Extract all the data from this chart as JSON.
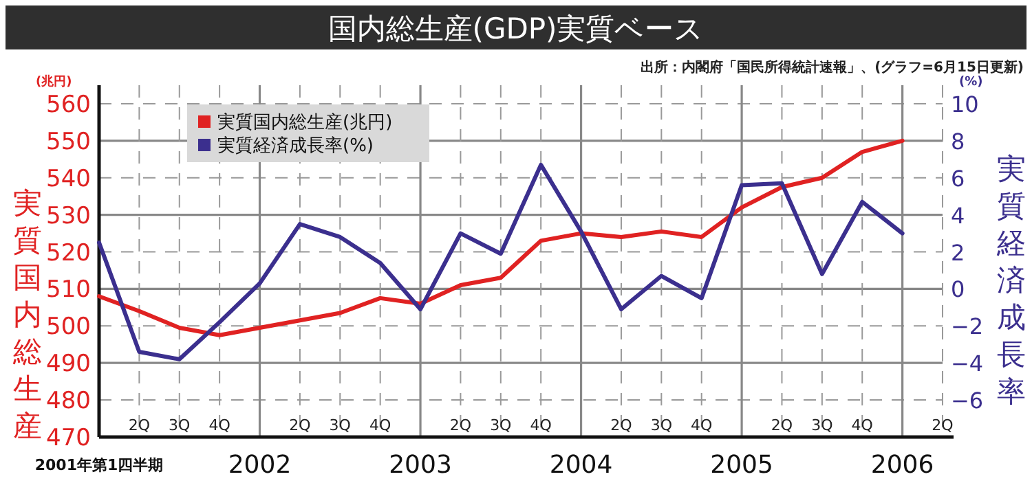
{
  "chart_data": {
    "type": "line",
    "title": "国内総生産(GDP)実質ベース",
    "ylabel": "実質国内総生産",
    "y2label": "実質経済成長率",
    "annotations": [
      "出所：内閣府「国民所得統計速報」、(グラフ=6月15日更新)",
      "(兆円)",
      "(%)"
    ],
    "categories": [
      "2001年第1四半期",
      "2Q",
      "3Q",
      "4Q",
      "2002",
      "2Q",
      "3Q",
      "4Q",
      "2003",
      "2Q",
      "3Q",
      "4Q",
      "2004",
      "2Q",
      "3Q",
      "4Q",
      "2005",
      "2Q",
      "3Q",
      "4Q",
      "2006",
      "2Q"
    ],
    "series": [
      {
        "name": "実質国内総生産(兆円)",
        "color": "#e02222",
        "values": [
          508,
          504,
          499.5,
          497.5,
          499.5,
          501.5,
          503.5,
          507.5,
          506,
          511,
          513,
          523,
          525,
          524,
          525.5,
          524,
          532,
          537.5,
          540,
          547,
          550,
          null
        ]
      },
      {
        "name": "実質経済成長率(%)",
        "color": "#3b2f8e",
        "axis": "y2",
        "values": [
          2.5,
          -3.4,
          -3.8,
          -1.8,
          0.3,
          3.5,
          2.8,
          1.4,
          -1.1,
          3.0,
          1.9,
          6.7,
          3.1,
          -1.1,
          0.7,
          -0.5,
          5.6,
          5.7,
          0.8,
          4.7,
          3.0,
          null
        ]
      }
    ],
    "ylim": [
      470,
      565
    ],
    "yticks": [
      470,
      480,
      490,
      500,
      510,
      520,
      530,
      540,
      550,
      560
    ],
    "y2lim": [
      -8,
      11
    ],
    "y2ticks": [
      -6,
      -4,
      -2,
      0,
      2,
      4,
      6,
      8,
      10
    ],
    "grid": true,
    "legend": "top left"
  }
}
